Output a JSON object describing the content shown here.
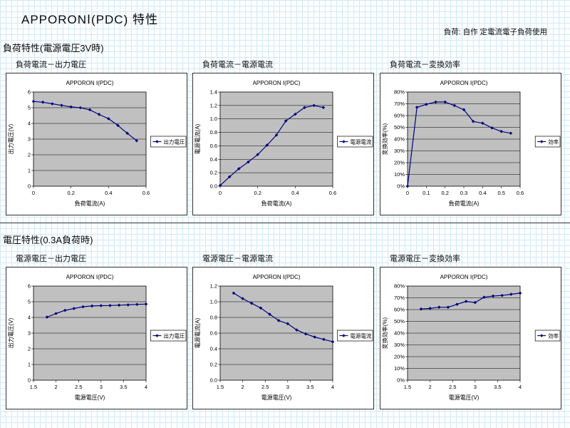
{
  "page": {
    "title": "APPORONⅠ(PDC) 特性",
    "note": "負荷: 自作  定電流電子負荷使用",
    "sections": [
      {
        "heading": "負荷特性(電源電圧3V時)"
      },
      {
        "heading": "電圧特性(0.3A負荷時)"
      }
    ]
  },
  "colors": {
    "series_line": "#000080",
    "plot_background": "#c0c0c0",
    "gridline": "#000000",
    "axis": "#000000",
    "chart_border": "#333333",
    "legend_background": "#ffffff",
    "paper_grid": "#d2e9f7",
    "text": "#000000"
  },
  "chart_data": [
    {
      "type": "line",
      "heading": "負荷電流－出力電圧",
      "title": "APPORON Ⅰ(PDC)",
      "xlabel": "負荷電流(A)",
      "ylabel": "出力電圧(V)",
      "legend": "出力電圧",
      "legend_position": "right",
      "grid": "horizontal",
      "xlim": [
        0,
        0.6
      ],
      "ylim": [
        0,
        6
      ],
      "xticks": [
        0,
        0.2,
        0.4,
        0.6
      ],
      "xtick_labels": [
        "0",
        "0.2",
        "0.4",
        "0.6"
      ],
      "yticks": [
        0,
        1,
        2,
        3,
        4,
        5,
        6
      ],
      "ytick_labels": [
        "0",
        "1",
        "2",
        "3",
        "4",
        "5",
        "6"
      ],
      "x": [
        0,
        0.05,
        0.1,
        0.15,
        0.2,
        0.25,
        0.3,
        0.35,
        0.4,
        0.45,
        0.5,
        0.55
      ],
      "y": [
        5.4,
        5.35,
        5.25,
        5.15,
        5.05,
        5.0,
        4.87,
        4.57,
        4.3,
        3.87,
        3.37,
        2.9
      ]
    },
    {
      "type": "line",
      "heading": "負荷電流－電源電流",
      "title": "APPORON Ⅰ(PDC)",
      "xlabel": "負荷電流(A)",
      "ylabel": "電源電流(A)",
      "legend": "電源電流",
      "legend_position": "right",
      "grid": "horizontal",
      "xlim": [
        0,
        0.6
      ],
      "ylim": [
        0,
        1.4
      ],
      "xticks": [
        0,
        0.2,
        0.4,
        0.6
      ],
      "xtick_labels": [
        "0",
        "0.2",
        "0.4",
        "0.6"
      ],
      "yticks": [
        0,
        0.2,
        0.4,
        0.6,
        0.8,
        1.0,
        1.2,
        1.4
      ],
      "ytick_labels": [
        "0.0",
        "0.2",
        "0.4",
        "0.6",
        "0.8",
        "1.0",
        "1.2",
        "1.4"
      ],
      "x": [
        0,
        0.05,
        0.1,
        0.15,
        0.2,
        0.25,
        0.3,
        0.35,
        0.4,
        0.45,
        0.5,
        0.55
      ],
      "y": [
        0.01,
        0.14,
        0.26,
        0.36,
        0.47,
        0.61,
        0.76,
        0.97,
        1.07,
        1.17,
        1.2,
        1.17
      ]
    },
    {
      "type": "line",
      "heading": "負荷電流－変換効率",
      "title": "APPORON Ⅰ(PDC)",
      "xlabel": "負荷電流(A)",
      "ylabel": "変換効率(%)",
      "legend": "効率",
      "legend_position": "right",
      "grid": "horizontal",
      "xlim": [
        0,
        0.6
      ],
      "ylim": [
        0,
        80
      ],
      "xticks": [
        0,
        0.1,
        0.2,
        0.3,
        0.4,
        0.5,
        0.6
      ],
      "xtick_labels": [
        "0",
        "0.1",
        "0.2",
        "0.3",
        "0.4",
        "0.5",
        "0.6"
      ],
      "yticks": [
        0,
        10,
        20,
        30,
        40,
        50,
        60,
        70,
        80
      ],
      "ytick_labels": [
        "0%",
        "10%",
        "20%",
        "30%",
        "40%",
        "50%",
        "60%",
        "70%",
        "80%"
      ],
      "x": [
        0,
        0.05,
        0.1,
        0.15,
        0.2,
        0.25,
        0.3,
        0.35,
        0.4,
        0.45,
        0.5,
        0.55
      ],
      "y": [
        0,
        67,
        69.5,
        71.5,
        71.5,
        68.5,
        65,
        55,
        53.5,
        49.5,
        46.5,
        45
      ]
    },
    {
      "type": "line",
      "heading": "電源電圧－出力電圧",
      "title": "APPORON Ⅰ(PDC)",
      "xlabel": "電源電圧(V)",
      "ylabel": "出力電圧(V)",
      "legend": "出力電圧",
      "legend_position": "right",
      "grid": "horizontal",
      "xlim": [
        1.5,
        4
      ],
      "ylim": [
        0,
        6
      ],
      "xticks": [
        1.5,
        2,
        2.5,
        3,
        3.5,
        4
      ],
      "xtick_labels": [
        "1.5",
        "2",
        "2.5",
        "3",
        "3.5",
        "4"
      ],
      "yticks": [
        0,
        1,
        2,
        3,
        4,
        5,
        6
      ],
      "ytick_labels": [
        "0",
        "1",
        "2",
        "3",
        "4",
        "5",
        "6"
      ],
      "x": [
        1.8,
        2,
        2.2,
        2.4,
        2.6,
        2.8,
        3,
        3.2,
        3.4,
        3.6,
        3.8,
        4
      ],
      "y": [
        4.02,
        4.25,
        4.45,
        4.57,
        4.68,
        4.73,
        4.75,
        4.76,
        4.78,
        4.8,
        4.83,
        4.85
      ]
    },
    {
      "type": "line",
      "heading": "電源電圧－電源電流",
      "title": "APPORON Ⅰ(PDC)",
      "xlabel": "電源電圧(V)",
      "ylabel": "電源電流(A)",
      "legend": "電源電流",
      "legend_position": "right",
      "grid": "horizontal",
      "xlim": [
        1.5,
        4
      ],
      "ylim": [
        0,
        1.2
      ],
      "xticks": [
        1.5,
        2,
        2.5,
        3,
        3.5,
        4
      ],
      "xtick_labels": [
        "1.5",
        "2",
        "2.5",
        "3",
        "3.5",
        "4"
      ],
      "yticks": [
        0,
        0.2,
        0.4,
        0.6,
        0.8,
        1.0,
        1.2
      ],
      "ytick_labels": [
        "0.0",
        "0.2",
        "0.4",
        "0.6",
        "0.8",
        "1.0",
        "1.2"
      ],
      "x": [
        1.8,
        2,
        2.2,
        2.4,
        2.6,
        2.8,
        3,
        3.2,
        3.4,
        3.6,
        3.8,
        4
      ],
      "y": [
        1.11,
        1.04,
        0.98,
        0.92,
        0.84,
        0.76,
        0.72,
        0.64,
        0.59,
        0.55,
        0.52,
        0.49
      ]
    },
    {
      "type": "line",
      "heading": "電源電圧－変換効率",
      "title": "APPORON Ⅰ(PDC)",
      "xlabel": "電源電圧(V)",
      "ylabel": "変換効率(%)",
      "legend": "効率",
      "legend_position": "right",
      "grid": "horizontal",
      "xlim": [
        1.5,
        4
      ],
      "ylim": [
        0,
        80
      ],
      "xticks": [
        1.5,
        2,
        2.5,
        3,
        3.5,
        4
      ],
      "xtick_labels": [
        "1.5",
        "2",
        "2.5",
        "3",
        "3.5",
        "4"
      ],
      "yticks": [
        0,
        10,
        20,
        30,
        40,
        50,
        60,
        70,
        80
      ],
      "ytick_labels": [
        "0%",
        "10%",
        "20%",
        "30%",
        "40%",
        "50%",
        "60%",
        "70%",
        "80%"
      ],
      "x": [
        1.8,
        2,
        2.2,
        2.4,
        2.6,
        2.8,
        3,
        3.2,
        3.4,
        3.6,
        3.8,
        4
      ],
      "y": [
        60.5,
        61,
        62,
        62,
        64.5,
        67,
        66,
        70.5,
        71.5,
        72,
        73,
        74
      ]
    }
  ]
}
